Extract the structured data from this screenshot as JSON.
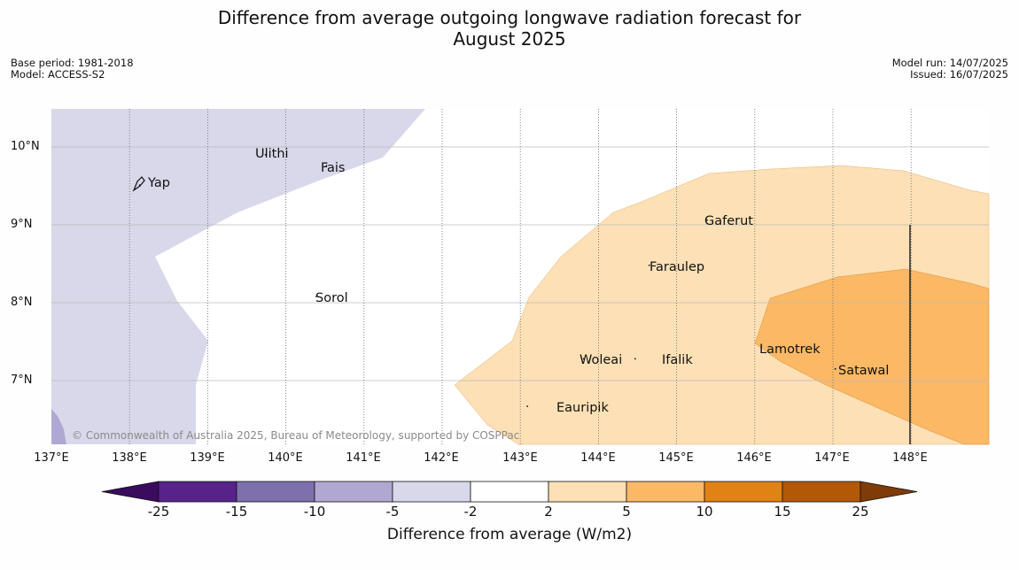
{
  "title": {
    "line1": "Difference from average outgoing longwave radiation forecast for",
    "line2": "August 2025"
  },
  "meta": {
    "base_period": "Base period: 1981-2018",
    "model": "Model: ACCESS-S2",
    "model_run": "Model run: 14/07/2025",
    "issued": "Issued: 16/07/2025"
  },
  "map": {
    "lon_range": [
      137,
      149
    ],
    "lat_range": [
      6.2,
      10.5
    ],
    "lat_ticks": [
      {
        "value": 10,
        "label": "10°N"
      },
      {
        "value": 9,
        "label": "9°N"
      },
      {
        "value": 8,
        "label": "8°N"
      },
      {
        "value": 7,
        "label": "7°N"
      }
    ],
    "lon_ticks": [
      {
        "value": 137,
        "label": "137°E"
      },
      {
        "value": 138,
        "label": "138°E"
      },
      {
        "value": 139,
        "label": "139°E"
      },
      {
        "value": 140,
        "label": "140°E"
      },
      {
        "value": 141,
        "label": "141°E"
      },
      {
        "value": 142,
        "label": "142°E"
      },
      {
        "value": 143,
        "label": "143°E"
      },
      {
        "value": 144,
        "label": "144°E"
      },
      {
        "value": 145,
        "label": "145°E"
      },
      {
        "value": 146,
        "label": "146°E"
      },
      {
        "value": 147,
        "label": "147°E"
      },
      {
        "value": 148,
        "label": "148°E"
      }
    ],
    "places": [
      {
        "name": "Ulithi",
        "lon": 139.74,
        "lat": 9.9
      },
      {
        "name": "Fais",
        "lon": 140.52,
        "lat": 9.76
      },
      {
        "name": "Yap",
        "lon": 138.13,
        "lat": 9.51
      },
      {
        "name": "Gaferut",
        "lon": 145.39,
        "lat": 9.06
      },
      {
        "name": "Faraulep",
        "lon": 144.65,
        "lat": 8.48
      },
      {
        "name": "Sorol",
        "lon": 140.39,
        "lat": 8.08
      },
      {
        "name": "Lamotrek",
        "lon": 146.33,
        "lat": 7.42
      },
      {
        "name": "Woleai",
        "lon": 143.81,
        "lat": 7.28
      },
      {
        "name": "Ifalik",
        "lon": 144.47,
        "lat": 7.28
      },
      {
        "name": "Satawal",
        "lon": 147.03,
        "lat": 7.15
      },
      {
        "name": "Eauripik",
        "lon": 143.09,
        "lat": 6.67
      }
    ],
    "copyright": "© Commonwealth of Australia 2025, Bureau of Meteorology, supported by COSPPac",
    "colors": {
      "neg2_5": "#d8d8ea",
      "neg5_10": "#b0a8d2",
      "pos2_5": "#fde0b5",
      "pos5_10": "#fbb865"
    }
  },
  "colorbar": {
    "title": "Difference from average (W/m2)",
    "labels": [
      "-25",
      "-15",
      "-10",
      "-5",
      "-2",
      "2",
      "5",
      "10",
      "15",
      "25"
    ],
    "colors": [
      "#3b0b5e",
      "#57238b",
      "#7e70ad",
      "#b0a8d2",
      "#d8d8ea",
      "#ffffff",
      "#fde0b5",
      "#fbb865",
      "#e08214",
      "#b35806",
      "#7f3b08"
    ]
  }
}
